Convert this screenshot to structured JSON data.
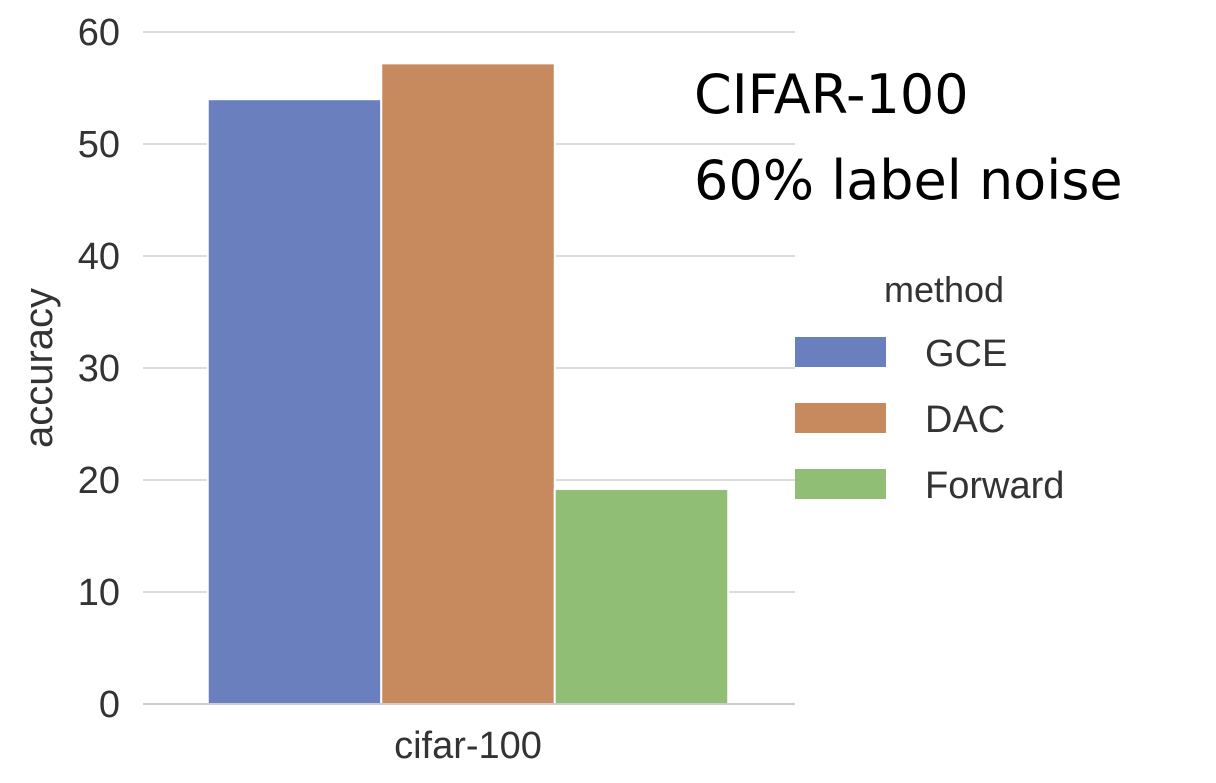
{
  "chart_data": {
    "type": "bar",
    "title": "",
    "xlabel": "",
    "ylabel": "accuracy",
    "categories": [
      "cifar-100"
    ],
    "ylim": [
      0,
      60
    ],
    "yticks": [
      0,
      10,
      20,
      30,
      40,
      50,
      60
    ],
    "grid": "horizontal",
    "legend": {
      "title": "method",
      "placement": "right"
    },
    "series": [
      {
        "name": "GCE",
        "values": [
          54.0
        ],
        "color": "#6a7fbd"
      },
      {
        "name": "DAC",
        "values": [
          57.2
        ],
        "color": "#c68a5e"
      },
      {
        "name": "Forward",
        "values": [
          19.2
        ],
        "color": "#8fbe74"
      }
    ],
    "annotations": [
      {
        "text": "CIFAR-100"
      },
      {
        "text": "60% label noise"
      }
    ]
  }
}
